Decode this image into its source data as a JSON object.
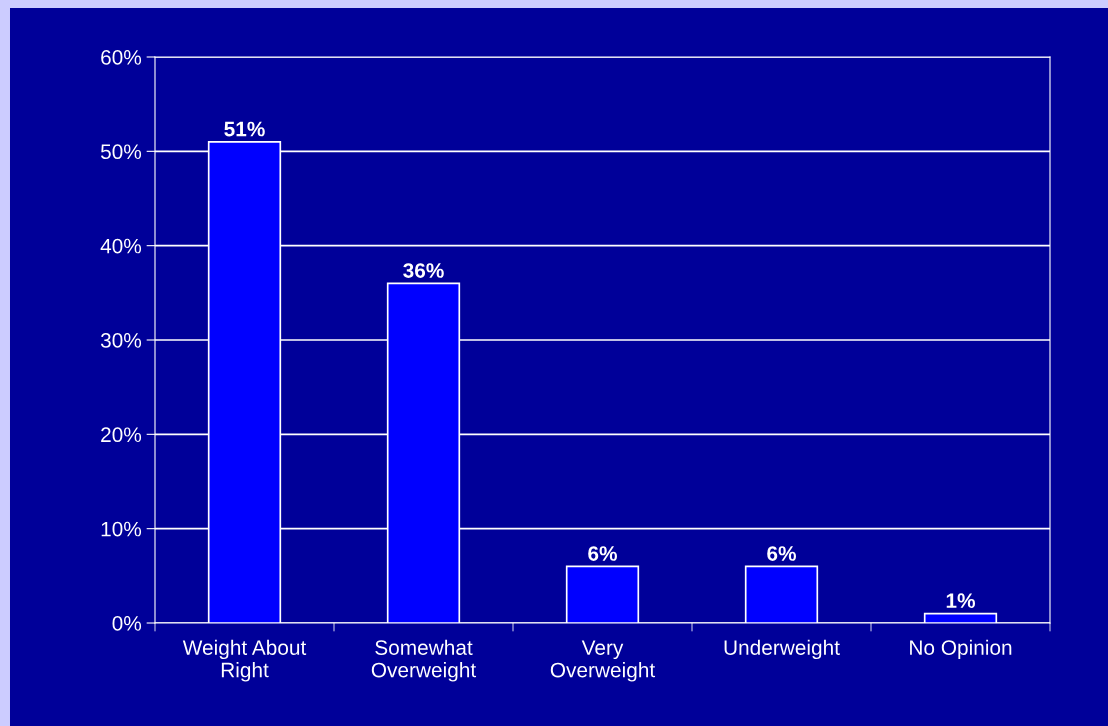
{
  "chart_data": {
    "type": "bar",
    "categories": [
      "Weight About\nRight",
      "Somewhat\nOverweight",
      "Very\nOverweight",
      "Underweight",
      "No Opinion"
    ],
    "values": [
      51,
      36,
      6,
      6,
      1
    ],
    "color": "#0000ff",
    "value_labels": [
      "51%",
      "36%",
      "6%",
      "6%",
      "1%"
    ],
    "ylim": [
      0,
      60
    ],
    "yticks": [
      {
        "value": 0,
        "label": "0%"
      },
      {
        "value": 10,
        "label": "10%"
      },
      {
        "value": 20,
        "label": "20%"
      },
      {
        "value": 30,
        "label": "30%"
      },
      {
        "value": 40,
        "label": "40%"
      },
      {
        "value": 50,
        "label": "50%"
      },
      {
        "value": 60,
        "label": "60%"
      }
    ],
    "grid": "y"
  }
}
